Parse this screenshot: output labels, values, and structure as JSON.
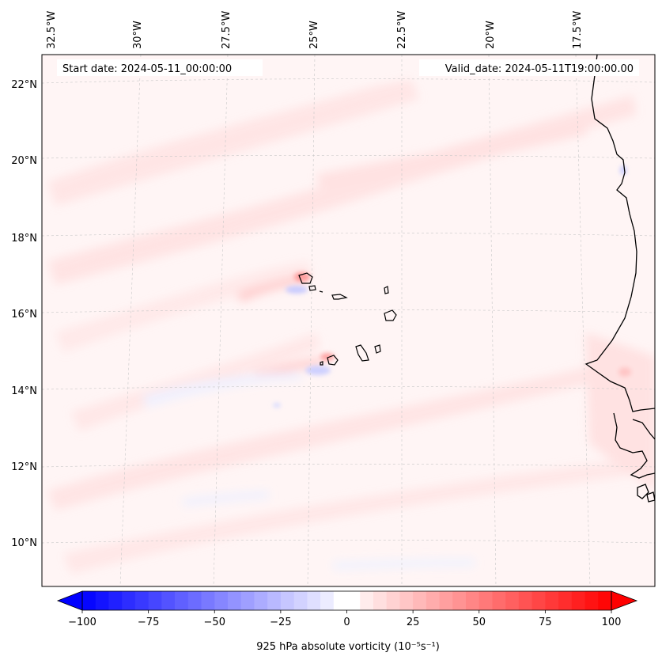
{
  "map": {
    "start_label": "Start date: 2024-05-11_00:00:00",
    "valid_label": "Valid_date: 2024-05-11T19:00:00.00",
    "lon_ticks": [
      "32.5°W",
      "30°W",
      "27.5°W",
      "25°W",
      "22.5°W",
      "20°W",
      "17.5°W"
    ],
    "lat_ticks": [
      "22°N",
      "20°N",
      "18°N",
      "16°N",
      "14°N",
      "12°N",
      "10°N"
    ],
    "background_color": "#fff5f5",
    "coast_color": "#000000"
  },
  "colorbar": {
    "label": "925 hPa absolute vorticity (10⁻⁵s⁻¹)",
    "ticks": [
      "−100",
      "−75",
      "−50",
      "−25",
      "0",
      "25",
      "50",
      "75",
      "100"
    ],
    "min": -100,
    "max": 100,
    "low_color": "#0000ff",
    "mid_color": "#ffffff",
    "high_color": "#ff0000"
  }
}
